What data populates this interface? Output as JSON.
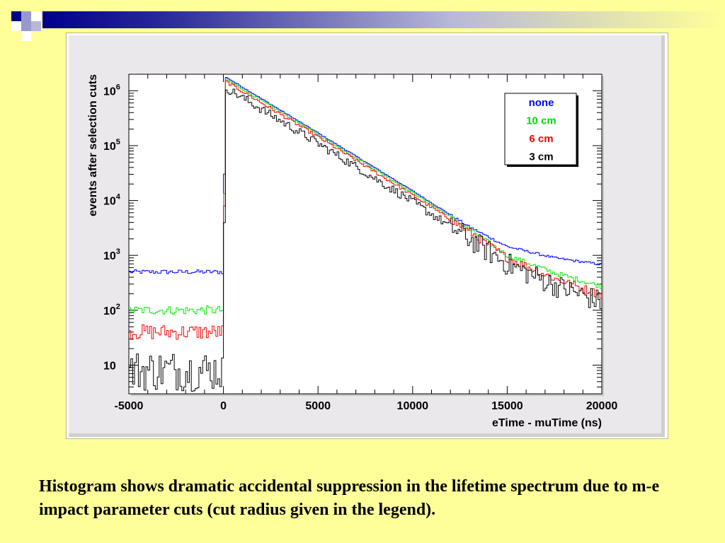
{
  "chart_data": {
    "type": "line",
    "title": "",
    "xlabel": "eTime - muTime (ns)",
    "ylabel": "events after selection cuts",
    "xlim": [
      -5000,
      20000
    ],
    "ylim": [
      3,
      2000000
    ],
    "yscale": "log",
    "grid": false,
    "legend_position": "top-right",
    "x_ticks": [
      {
        "value": -5000,
        "label": "-5000"
      },
      {
        "value": 0,
        "label": "0"
      },
      {
        "value": 5000,
        "label": "5000"
      },
      {
        "value": 10000,
        "label": "10000"
      },
      {
        "value": 15000,
        "label": "15000"
      },
      {
        "value": 20000,
        "label": "20000"
      }
    ],
    "y_ticks": [
      {
        "value": 10,
        "label": "10"
      },
      {
        "value": 100,
        "label": "10",
        "sup": "2"
      },
      {
        "value": 1000,
        "label": "10",
        "sup": "3"
      },
      {
        "value": 10000,
        "label": "10",
        "sup": "4"
      },
      {
        "value": 100000,
        "label": "10",
        "sup": "5"
      },
      {
        "value": 1000000,
        "label": "10",
        "sup": "6"
      }
    ],
    "series": [
      {
        "name": "none",
        "color": "#0000ff",
        "noise": 0.04,
        "x": [
          -5000,
          -50,
          0,
          100,
          5000,
          10000,
          13000,
          15000,
          17500,
          20000
        ],
        "values": [
          500,
          500,
          500,
          1800000,
          170000,
          15000,
          3300,
          1450,
          900,
          680
        ]
      },
      {
        "name": "10 cm",
        "color": "#00ee00",
        "noise": 0.08,
        "x": [
          -5000,
          -50,
          0,
          100,
          5000,
          10000,
          13000,
          15000,
          17500,
          20000
        ],
        "values": [
          100,
          100,
          100,
          1650000,
          160000,
          14000,
          3000,
          1000,
          480,
          270
        ]
      },
      {
        "name": "6 cm",
        "color": "#ff0000",
        "noise": 0.14,
        "x": [
          -5000,
          -50,
          0,
          100,
          5000,
          10000,
          13000,
          15000,
          17500,
          20000
        ],
        "values": [
          40,
          40,
          40,
          1500000,
          145000,
          12500,
          2700,
          900,
          380,
          190
        ]
      },
      {
        "name": "3 cm",
        "color": "#000000",
        "noise": 0.38,
        "x": [
          -5000,
          -50,
          0,
          100,
          5000,
          10000,
          13000,
          15000,
          17500,
          20000
        ],
        "values": [
          8,
          8,
          10,
          1150000,
          110000,
          9500,
          2000,
          700,
          290,
          140
        ]
      }
    ]
  },
  "caption": "Histogram shows dramatic accidental suppression in the lifetime spectrum due to m-e impact parameter cuts (cut radius given in the legend).",
  "colors": {
    "background": "#ffff99",
    "panel": "#ebe8ec",
    "plot": "#ffffff",
    "header_bar": "#00008b",
    "deco_light": "#9999cc"
  }
}
